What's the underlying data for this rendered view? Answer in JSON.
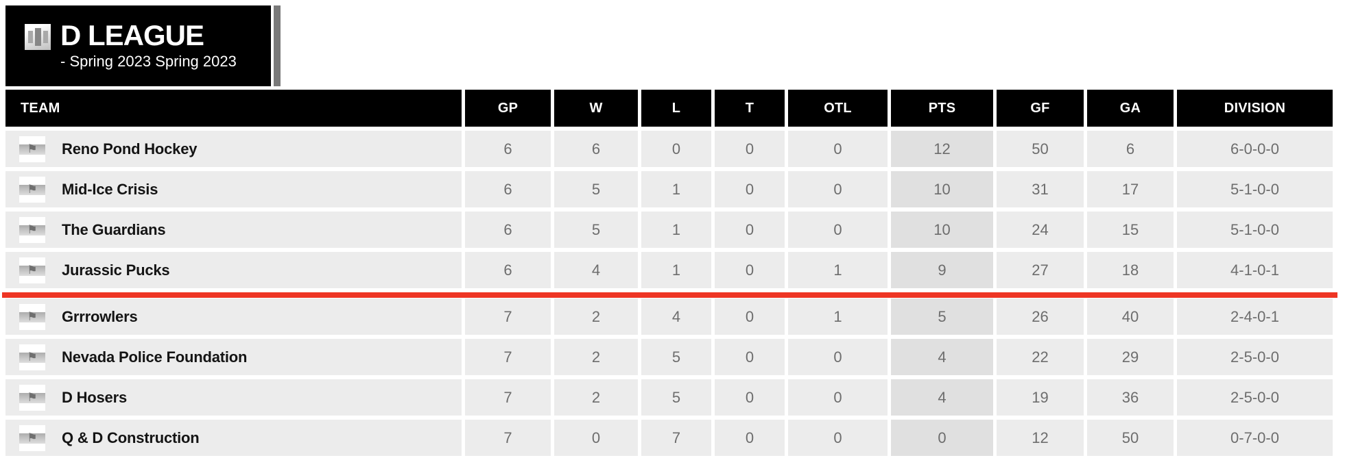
{
  "league": {
    "title": "D LEAGUE",
    "subtitle": "- Spring 2023 Spring 2023"
  },
  "icons": {
    "team_flag": "⚑"
  },
  "colors": {
    "accent_red": "#ee3524",
    "header_bg": "#000000",
    "row_bg": "#ececec",
    "pts_column_bg": "#e0e0e0",
    "side_bar_gray": "#7a7a7a"
  },
  "table": {
    "columns": [
      {
        "key": "team",
        "label": "TEAM"
      },
      {
        "key": "gp",
        "label": "GP"
      },
      {
        "key": "w",
        "label": "W"
      },
      {
        "key": "l",
        "label": "L"
      },
      {
        "key": "t",
        "label": "T"
      },
      {
        "key": "otl",
        "label": "OTL"
      },
      {
        "key": "pts",
        "label": "PTS"
      },
      {
        "key": "gf",
        "label": "GF"
      },
      {
        "key": "ga",
        "label": "GA"
      },
      {
        "key": "division",
        "label": "DIVISION"
      }
    ],
    "red_line_after_row": 4,
    "rows": [
      {
        "team": "Reno Pond Hockey",
        "gp": "6",
        "w": "6",
        "l": "0",
        "t": "0",
        "otl": "0",
        "pts": "12",
        "gf": "50",
        "ga": "6",
        "division": "6-0-0-0"
      },
      {
        "team": "Mid-Ice Crisis",
        "gp": "6",
        "w": "5",
        "l": "1",
        "t": "0",
        "otl": "0",
        "pts": "10",
        "gf": "31",
        "ga": "17",
        "division": "5-1-0-0"
      },
      {
        "team": "The Guardians",
        "gp": "6",
        "w": "5",
        "l": "1",
        "t": "0",
        "otl": "0",
        "pts": "10",
        "gf": "24",
        "ga": "15",
        "division": "5-1-0-0"
      },
      {
        "team": "Jurassic Pucks",
        "gp": "6",
        "w": "4",
        "l": "1",
        "t": "0",
        "otl": "1",
        "pts": "9",
        "gf": "27",
        "ga": "18",
        "division": "4-1-0-1"
      },
      {
        "team": "Grrrowlers",
        "gp": "7",
        "w": "2",
        "l": "4",
        "t": "0",
        "otl": "1",
        "pts": "5",
        "gf": "26",
        "ga": "40",
        "division": "2-4-0-1"
      },
      {
        "team": "Nevada Police Foundation",
        "gp": "7",
        "w": "2",
        "l": "5",
        "t": "0",
        "otl": "0",
        "pts": "4",
        "gf": "22",
        "ga": "29",
        "division": "2-5-0-0"
      },
      {
        "team": "D Hosers",
        "gp": "7",
        "w": "2",
        "l": "5",
        "t": "0",
        "otl": "0",
        "pts": "4",
        "gf": "19",
        "ga": "36",
        "division": "2-5-0-0"
      },
      {
        "team": "Q & D Construction",
        "gp": "7",
        "w": "0",
        "l": "7",
        "t": "0",
        "otl": "0",
        "pts": "0",
        "gf": "12",
        "ga": "50",
        "division": "0-7-0-0"
      }
    ]
  }
}
